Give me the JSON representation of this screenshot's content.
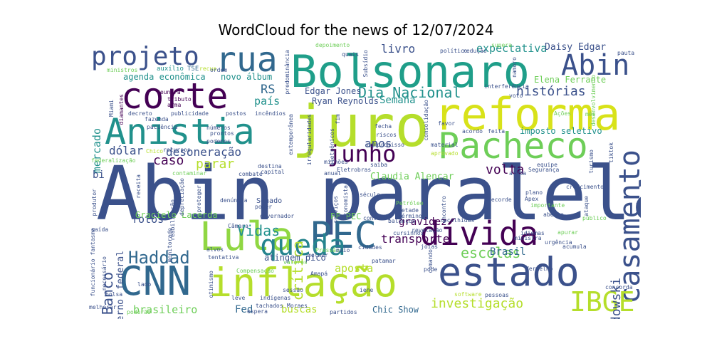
{
  "title": "WordCloud for the news of 12/07/2024",
  "words": [
    {
      "text": "Abin paralela",
      "color": "#3b518b",
      "rotate": false
    },
    {
      "text": "juro",
      "color": "#b5de2b",
      "rotate": false
    },
    {
      "text": "reforma",
      "color": "#d8e219",
      "rotate": false
    },
    {
      "text": "Bolsonaro",
      "color": "#1f9e89",
      "rotate": false
    },
    {
      "text": "corte",
      "color": "#440154",
      "rotate": false
    },
    {
      "text": "Anistia",
      "color": "#21918c",
      "rotate": false
    },
    {
      "text": "projeto",
      "color": "#3b518b",
      "rotate": false
    },
    {
      "text": "rua",
      "color": "#31688e",
      "rotate": false
    },
    {
      "text": "Pacheco",
      "color": "#6ece58",
      "rotate": false
    },
    {
      "text": "Lula",
      "color": "#90d743",
      "rotate": false
    },
    {
      "text": "PEC",
      "color": "#31688e",
      "rotate": false
    },
    {
      "text": "dívida",
      "color": "#440154",
      "rotate": false
    },
    {
      "text": "queda",
      "color": "#25848e",
      "rotate": false
    },
    {
      "text": "CNN",
      "color": "#31688e",
      "rotate": false
    },
    {
      "text": "inflação",
      "color": "#b5de2b",
      "rotate": false
    },
    {
      "text": "estado",
      "color": "#3b518b",
      "rotate": false
    },
    {
      "text": "casamento",
      "color": "#3b518b",
      "rotate": true
    },
    {
      "text": "IBGE",
      "color": "#b5de2b",
      "rotate": false
    },
    {
      "text": "Abin",
      "color": "#3b518b",
      "rotate": false
    },
    {
      "text": "junho",
      "color": "#440154",
      "rotate": false
    },
    {
      "text": "Dia Nacional",
      "color": "#21918c",
      "rotate": false
    },
    {
      "text": "histórias",
      "color": "#3b518b",
      "rotate": false
    },
    {
      "text": "Haddad",
      "color": "#31688e",
      "rotate": false
    },
    {
      "text": "Vidas",
      "color": "#21918c",
      "rotate": false
    },
    {
      "text": "escolas",
      "color": "#6ece58",
      "rotate": false
    },
    {
      "text": "Banco",
      "color": "#3b518b",
      "rotate": true
    },
    {
      "text": "crítica",
      "color": "#b5de2b",
      "rotate": true
    },
    {
      "text": "Lewandowski",
      "color": "#3b518b",
      "rotate": true
    },
    {
      "text": "volta",
      "color": "#440154",
      "rotate": false
    },
    {
      "text": "caso",
      "color": "#440154",
      "rotate": false
    },
    {
      "text": "parar",
      "color": "#b5de2b",
      "rotate": false
    },
    {
      "text": "dólar",
      "color": "#3b518b",
      "rotate": false
    },
    {
      "text": "desoneração",
      "color": "#3b518b",
      "rotate": false
    },
    {
      "text": "anos",
      "color": "#3b518b",
      "rotate": false
    },
    {
      "text": "expectativa",
      "color": "#21918c",
      "rotate": false
    },
    {
      "text": "livro",
      "color": "#3b518b",
      "rotate": false
    },
    {
      "text": "país",
      "color": "#21918c",
      "rotate": false
    },
    {
      "text": "RS",
      "color": "#31688e",
      "rotate": false
    },
    {
      "text": "Semana",
      "color": "#21918c",
      "rotate": false
    },
    {
      "text": "fotos",
      "color": "#3b518b",
      "rotate": false
    },
    {
      "text": "gravidez",
      "color": "#440154",
      "rotate": false
    },
    {
      "text": "transporte",
      "color": "#440154",
      "rotate": false
    },
    {
      "text": "Brasil",
      "color": "#31688e",
      "rotate": false
    },
    {
      "text": "aposta",
      "color": "#b5de2b",
      "rotate": false
    },
    {
      "text": "investigação",
      "color": "#b5de2b",
      "rotate": false
    },
    {
      "text": "brasileiro",
      "color": "#6ece58",
      "rotate": false
    },
    {
      "text": "Fed",
      "color": "#31688e",
      "rotate": false
    },
    {
      "text": "buscas",
      "color": "#b5de2b",
      "rotate": false
    },
    {
      "text": "mercado",
      "color": "#21918c",
      "rotate": true
    },
    {
      "text": "agenda econômica",
      "color": "#21918c",
      "rotate": false
    },
    {
      "text": "novo álbum",
      "color": "#21918c",
      "rotate": false
    },
    {
      "text": "Daisy Edgar",
      "color": "#3b518b",
      "rotate": false
    },
    {
      "text": "Elena Ferrante",
      "color": "#6ece58",
      "rotate": false
    },
    {
      "text": "imposto seletivo",
      "color": "#21918c",
      "rotate": false
    },
    {
      "text": "Claudia Alencar",
      "color": "#6ece58",
      "rotate": false
    },
    {
      "text": "Graciele Lacerda",
      "color": "#6ece58",
      "rotate": false
    },
    {
      "text": "Edgar Jones",
      "color": "#3b518b",
      "rotate": false
    },
    {
      "text": "Ryan Reynolds",
      "color": "#3b518b",
      "rotate": false
    },
    {
      "text": "Chic Show",
      "color": "#31688e",
      "rotate": false
    },
    {
      "text": "PF PEC",
      "color": "#6ece58",
      "rotate": false
    },
    {
      "text": "Senado",
      "color": "#3b518b",
      "rotate": false
    },
    {
      "text": "federal",
      "color": "#3b518b",
      "rotate": true
    },
    {
      "text": "Governo",
      "color": "#3b518b",
      "rotate": true
    },
    {
      "text": "atingem pico",
      "color": "#3b518b",
      "rotate": false
    },
    {
      "text": "bi",
      "color": "#3b518b",
      "rotate": false
    },
    {
      "text": "auxílio",
      "color": "#21918c",
      "rotate": false
    },
    {
      "text": "TSE",
      "color": "#31688e",
      "rotate": false
    },
    {
      "text": "recua",
      "color": "#b5de2b",
      "rotate": false
    },
    {
      "text": "ministros",
      "color": "#6ece58",
      "rotate": false
    },
    {
      "text": "Miami",
      "color": "#3b518b",
      "rotate": true
    },
    {
      "text": "diamantes",
      "color": "#440154",
      "rotate": true
    },
    {
      "text": "reunirá",
      "color": "#440154",
      "rotate": false
    },
    {
      "text": "tributo",
      "color": "#440154",
      "rotate": false
    },
    {
      "text": "arma",
      "color": "#440154",
      "rotate": false
    },
    {
      "text": "decreto",
      "color": "#3b518b",
      "rotate": false
    },
    {
      "text": "publicidade",
      "color": "#3b518b",
      "rotate": false
    },
    {
      "text": "postos",
      "color": "#3b518b",
      "rotate": false
    },
    {
      "text": "incêndios",
      "color": "#3b518b",
      "rotate": false
    },
    {
      "text": "depoimento",
      "color": "#6ece58",
      "rotate": false
    },
    {
      "text": "quais",
      "color": "#3b518b",
      "rotate": false
    },
    {
      "text": "político",
      "color": "#3b518b",
      "rotate": false
    },
    {
      "text": "redução",
      "color": "#3b518b",
      "rotate": false
    },
    {
      "text": "supera",
      "color": "#6ece58",
      "rotate": false
    },
    {
      "text": "pauta",
      "color": "#3b518b",
      "rotate": false
    },
    {
      "text": "voto",
      "color": "#3b518b",
      "rotate": false
    },
    {
      "text": "interferência",
      "color": "#3b518b",
      "rotate": false
    },
    {
      "text": "favor",
      "color": "#3b518b",
      "rotate": false
    },
    {
      "text": "acordo",
      "color": "#3b518b",
      "rotate": false
    },
    {
      "text": "feita",
      "color": "#3b518b",
      "rotate": false
    },
    {
      "text": "fecha",
      "color": "#3b518b",
      "rotate": false
    },
    {
      "text": "riscos",
      "color": "#3b518b",
      "rotate": false
    },
    {
      "text": "compromisso",
      "color": "#3b518b",
      "rotate": false
    },
    {
      "text": "aprovado",
      "color": "#b5de2b",
      "rotate": false
    },
    {
      "text": "equipe",
      "color": "#3b518b",
      "rotate": false
    },
    {
      "text": "Segurança",
      "color": "#3b518b",
      "rotate": false
    },
    {
      "text": "crescimento",
      "color": "#3b518b",
      "rotate": false
    },
    {
      "text": "plano",
      "color": "#3b518b",
      "rotate": false
    },
    {
      "text": "Apex",
      "color": "#3b518b",
      "rotate": false
    },
    {
      "text": "importante",
      "color": "#6ece58",
      "rotate": false
    },
    {
      "text": "aberto",
      "color": "#3b518b",
      "rotate": false
    },
    {
      "text": "público",
      "color": "#6ece58",
      "rotate": false
    },
    {
      "text": "idiomas",
      "color": "#3b518b",
      "rotate": false
    },
    {
      "text": "ministra",
      "color": "#3b518b",
      "rotate": false
    },
    {
      "text": "urgência",
      "color": "#3b518b",
      "rotate": false
    },
    {
      "text": "acumula",
      "color": "#3b518b",
      "rotate": false
    },
    {
      "text": "apurar",
      "color": "#6ece58",
      "rotate": false
    },
    {
      "text": "concorda",
      "color": "#3b518b",
      "rotate": false
    },
    {
      "text": "software",
      "color": "#b5de2b",
      "rotate": false
    },
    {
      "text": "pessoas",
      "color": "#3b518b",
      "rotate": false
    },
    {
      "text": "iene",
      "color": "#3b518b",
      "rotate": false
    },
    {
      "text": "partidos",
      "color": "#3b518b",
      "rotate": false
    },
    {
      "text": "espera",
      "color": "#3b518b",
      "rotate": false
    },
    {
      "text": "tachados",
      "color": "#3b518b",
      "rotate": false
    },
    {
      "text": "indígenas",
      "color": "#3b518b",
      "rotate": false
    },
    {
      "text": "Moraes",
      "color": "#3b518b",
      "rotate": false
    },
    {
      "text": "sessão",
      "color": "#3b518b",
      "rotate": false
    },
    {
      "text": "Compensação",
      "color": "#6ece58",
      "rotate": false
    },
    {
      "text": "Amapá",
      "color": "#3b518b",
      "rotate": false
    },
    {
      "text": "valores",
      "color": "#6ece58",
      "rotate": false
    },
    {
      "text": "cidades",
      "color": "#3b518b",
      "rotate": false
    },
    {
      "text": "joias",
      "color": "#3b518b",
      "rotate": false
    },
    {
      "text": "revelação",
      "color": "#3b518b",
      "rotate": false
    },
    {
      "text": "cursinhos",
      "color": "#3b518b",
      "rotate": false
    },
    {
      "text": "conversa",
      "color": "#3b518b",
      "rotate": false
    },
    {
      "text": "balanços",
      "color": "#3b518b",
      "rotate": false
    },
    {
      "text": "metade",
      "color": "#3b518b",
      "rotate": false
    },
    {
      "text": "Petróleo",
      "color": "#6ece58",
      "rotate": false
    },
    {
      "text": "recolhidas",
      "color": "#3b518b",
      "rotate": false
    },
    {
      "text": "término",
      "color": "#3b518b",
      "rotate": false
    },
    {
      "text": "século",
      "color": "#3b518b",
      "rotate": false
    },
    {
      "text": "Eletrobras",
      "color": "#3b518b",
      "rotate": false
    },
    {
      "text": "saiba",
      "color": "#3b518b",
      "rotate": false
    },
    {
      "text": "anual",
      "color": "#3b518b",
      "rotate": false
    },
    {
      "text": "milhões",
      "color": "#3b518b",
      "rotate": false
    },
    {
      "text": "destina",
      "color": "#3b518b",
      "rotate": false
    },
    {
      "text": "capital",
      "color": "#3b518b",
      "rotate": false
    },
    {
      "text": "combate",
      "color": "#3b518b",
      "rotate": false
    },
    {
      "text": "contaminar",
      "color": "#6ece58",
      "rotate": false
    },
    {
      "text": "federalização",
      "color": "#6ece58",
      "rotate": false
    },
    {
      "text": "recursos",
      "color": "#3b518b",
      "rotate": false
    },
    {
      "text": "Chico",
      "color": "#b5de2b",
      "rotate": false
    },
    {
      "text": "números",
      "color": "#3b518b",
      "rotate": false
    },
    {
      "text": "prontos",
      "color": "#3b518b",
      "rotate": false
    },
    {
      "text": "podemos",
      "color": "#3b518b",
      "rotate": false
    },
    {
      "text": "ordem",
      "color": "#3b518b",
      "rotate": false
    },
    {
      "text": "predominância",
      "color": "#3b518b",
      "rotate": true
    },
    {
      "text": "Subsídio",
      "color": "#3b518b",
      "rotate": true
    },
    {
      "text": "consolidação",
      "color": "#3b518b",
      "rotate": true
    },
    {
      "text": "Ações",
      "color": "#6ece58",
      "rotate": false
    },
    {
      "text": "mês",
      "color": "#6ece58",
      "rotate": false
    },
    {
      "text": "namoro",
      "color": "#3b518b",
      "rotate": true
    },
    {
      "text": "desenvolvimento",
      "color": "#6ece58",
      "rotate": true
    },
    {
      "text": "irregularidades",
      "color": "#3b518b",
      "rotate": true
    },
    {
      "text": "eletrônicos",
      "color": "#3b518b",
      "rotate": true
    },
    {
      "text": "extemporânea",
      "color": "#3b518b",
      "rotate": true
    },
    {
      "text": "fim",
      "color": "#3b518b",
      "rotate": true
    },
    {
      "text": "turismo",
      "color": "#3b518b",
      "rotate": true
    },
    {
      "text": "tiktok",
      "color": "#3b518b",
      "rotate": true
    },
    {
      "text": "ataque",
      "color": "#3b518b",
      "rotate": true
    },
    {
      "text": "receita",
      "color": "#3b518b",
      "rotate": true
    },
    {
      "text": "produtor",
      "color": "#3b518b",
      "rotate": true
    },
    {
      "text": "funcionário fantasma",
      "color": "#3b518b",
      "rotate": true
    },
    {
      "text": "necessário",
      "color": "#3b518b",
      "rotate": true
    },
    {
      "text": "monitorado",
      "color": "#3b518b",
      "rotate": true
    },
    {
      "text": "reabilitação",
      "color": "#3b518b",
      "rotate": true
    },
    {
      "text": "depreciação",
      "color": "#3b518b",
      "rotate": true
    },
    {
      "text": "proteger",
      "color": "#3b518b",
      "rotate": true
    },
    {
      "text": "escritório",
      "color": "#3b518b",
      "rotate": true
    },
    {
      "text": "encontro",
      "color": "#3b518b",
      "rotate": true
    },
    {
      "text": "economista",
      "color": "#3b518b",
      "rotate": true
    },
    {
      "text": "serviços",
      "color": "#3b518b",
      "rotate": true
    },
    {
      "text": "comando",
      "color": "#3b518b",
      "rotate": true
    },
    {
      "text": "otimismo",
      "color": "#3b518b",
      "rotate": true
    },
    {
      "text": "denúncia",
      "color": "#3b518b",
      "rotate": false
    },
    {
      "text": "poder",
      "color": "#3b518b",
      "rotate": false
    },
    {
      "text": "governador",
      "color": "#3b518b",
      "rotate": false
    },
    {
      "text": "Câmara",
      "color": "#3b518b",
      "rotate": false
    },
    {
      "text": "alvos",
      "color": "#3b518b",
      "rotate": false
    },
    {
      "text": "tentativa",
      "color": "#3b518b",
      "rotate": false
    },
    {
      "text": "fazenda",
      "color": "#3b518b",
      "rotate": false
    },
    {
      "text": "paciência",
      "color": "#3b518b",
      "rotate": false
    },
    {
      "text": "saída",
      "color": "#3b518b",
      "rotate": false
    },
    {
      "text": "bolsa",
      "color": "#3b518b",
      "rotate": false
    },
    {
      "text": "lado",
      "color": "#3b518b",
      "rotate": false
    },
    {
      "text": "melhorar",
      "color": "#3b518b",
      "rotate": false
    },
    {
      "text": "poderão",
      "color": "#6ece58",
      "rotate": false
    },
    {
      "text": "leve",
      "color": "#3b518b",
      "rotate": false
    },
    {
      "text": "Pressão",
      "color": "#6ece58",
      "rotate": false
    },
    {
      "text": "maio",
      "color": "#3b518b",
      "rotate": false
    },
    {
      "text": "melhor",
      "color": "#3b518b",
      "rotate": false
    },
    {
      "text": "patamar",
      "color": "#3b518b",
      "rotate": false
    },
    {
      "text": "pode",
      "color": "#3b518b",
      "rotate": false
    },
    {
      "text": "Vermelho",
      "color": "#3b518b",
      "rotate": false
    },
    {
      "text": "material",
      "color": "#3b518b",
      "rotate": false
    },
    {
      "text": "ainda",
      "color": "#3b518b",
      "rotate": false
    },
    {
      "text": "recorde",
      "color": "#3b518b",
      "rotate": false
    }
  ]
}
